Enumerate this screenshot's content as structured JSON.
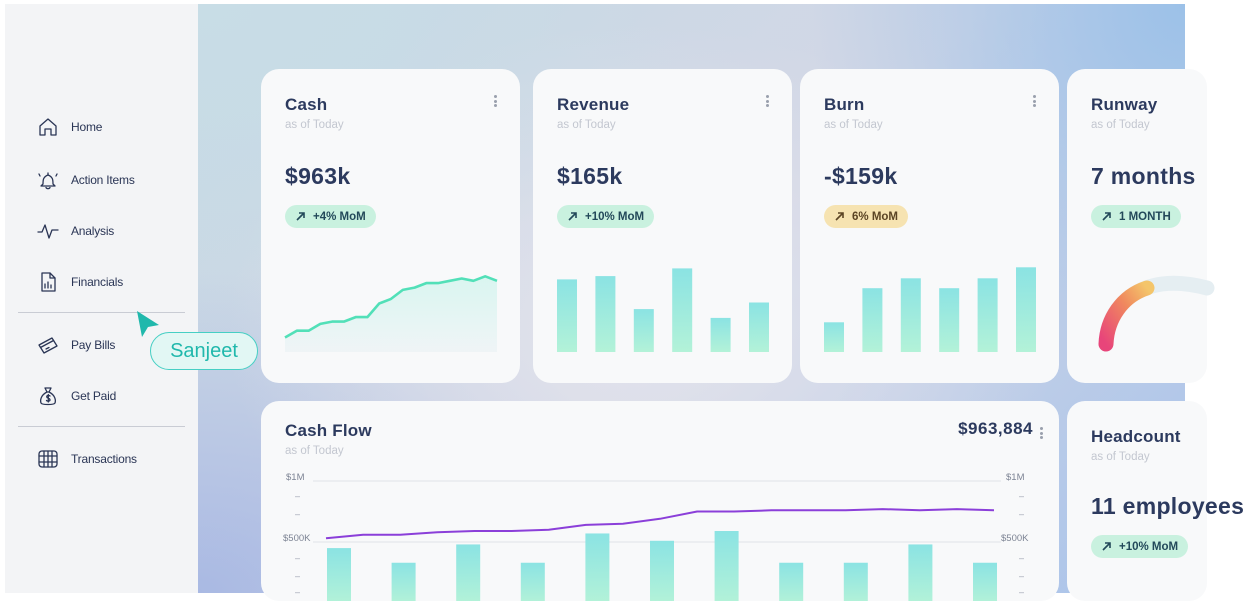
{
  "sidebar": {
    "items": [
      {
        "label": "Home",
        "icon": "home-icon"
      },
      {
        "label": "Action Items",
        "icon": "bell-icon"
      },
      {
        "label": "Analysis",
        "icon": "pulse-icon"
      },
      {
        "label": "Financials",
        "icon": "document-chart-icon"
      },
      {
        "label": "Pay Bills",
        "icon": "card-icon"
      },
      {
        "label": "Get Paid",
        "icon": "money-bag-icon"
      },
      {
        "label": "Transactions",
        "icon": "calendar-grid-icon"
      }
    ]
  },
  "collaborator": {
    "name": "Sanjeet",
    "color": "#20b8ac"
  },
  "cards": {
    "cash": {
      "title": "Cash",
      "subtitle": "as of Today",
      "value": "$963k",
      "badge": "+4% MoM"
    },
    "revenue": {
      "title": "Revenue",
      "subtitle": "as of Today",
      "value": "$165k",
      "badge": "+10% MoM"
    },
    "burn": {
      "title": "Burn",
      "subtitle": "as of Today",
      "value": "-$159k",
      "badge": "6% MoM"
    },
    "runway": {
      "title": "Runway",
      "subtitle": "as of Today",
      "value": "7 months",
      "badge": "1 MONTH"
    },
    "cashflow": {
      "title": "Cash Flow",
      "subtitle": "as of Today",
      "value": "$963,884",
      "y_top": "$1M",
      "y_mid": "$500K"
    },
    "headcount": {
      "title": "Headcount",
      "subtitle": "as of Today",
      "value": "11 employees",
      "badge": "+10% MoM"
    }
  },
  "colors": {
    "accent_green": "#c9f1df",
    "accent_yellow": "#f6e3b1",
    "bar_top": "#8be3e3",
    "bar_bottom": "#b3f2d8",
    "line_purple": "#8b3fd9",
    "gauge_start": "#e8457a",
    "gauge_end": "#f4c56a"
  },
  "chart_data": [
    {
      "type": "area",
      "name": "cash-sparkline",
      "values": [
        2,
        5,
        5,
        8,
        9,
        9,
        11,
        11,
        17,
        19,
        23,
        24,
        26,
        26,
        27,
        28,
        27,
        29,
        27
      ]
    },
    {
      "type": "bar",
      "name": "revenue-bars",
      "values": [
        66,
        69,
        39,
        76,
        31,
        45
      ]
    },
    {
      "type": "bar",
      "name": "burn-bars",
      "values": [
        27,
        58,
        67,
        58,
        67,
        77
      ]
    },
    {
      "type": "line",
      "name": "runway-gauge",
      "values": [
        0.62
      ]
    },
    {
      "type": "bar",
      "name": "cash-flow",
      "ylim": [
        0,
        1000000
      ],
      "bars": [
        450000,
        330000,
        480000,
        330000,
        570000,
        510000,
        590000,
        330000,
        330000,
        480000,
        330000
      ],
      "line": [
        530000,
        560000,
        560000,
        580000,
        590000,
        590000,
        600000,
        640000,
        650000,
        690000,
        750000,
        750000,
        760000,
        760000,
        760000,
        770000,
        760000,
        770000,
        760000
      ]
    }
  ]
}
